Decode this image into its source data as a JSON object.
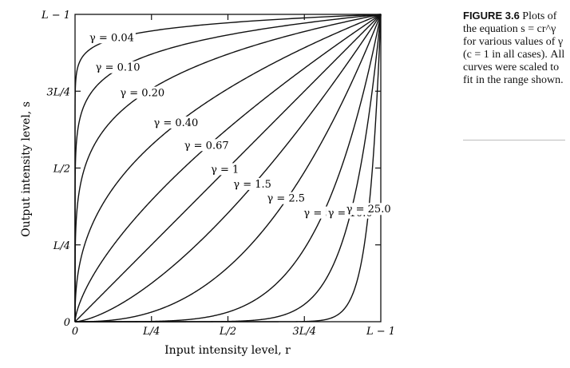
{
  "chart_data": {
    "type": "line",
    "title": "",
    "xlabel": "Input intensity level, r",
    "ylabel": "Output intensity level, s",
    "xlim": [
      0,
      1
    ],
    "ylim": [
      0,
      1
    ],
    "x_ticks": [
      {
        "value": 0,
        "label": "0"
      },
      {
        "value": 0.25,
        "label": "L/4"
      },
      {
        "value": 0.5,
        "label": "L/2"
      },
      {
        "value": 0.75,
        "label": "3L/4"
      },
      {
        "value": 1,
        "label": "L − 1"
      }
    ],
    "y_ticks": [
      {
        "value": 0,
        "label": "0"
      },
      {
        "value": 0.25,
        "label": "L/4"
      },
      {
        "value": 0.5,
        "label": "L/2"
      },
      {
        "value": 0.75,
        "label": "3L/4"
      },
      {
        "value": 1,
        "label": "L − 1"
      }
    ],
    "series": [
      {
        "gamma": 0.04,
        "name": "γ = 0.04"
      },
      {
        "gamma": 0.1,
        "name": "γ = 0.10"
      },
      {
        "gamma": 0.2,
        "name": "γ = 0.20"
      },
      {
        "gamma": 0.4,
        "name": "γ = 0.40"
      },
      {
        "gamma": 0.67,
        "name": "γ = 0.67"
      },
      {
        "gamma": 1,
        "name": "γ = 1"
      },
      {
        "gamma": 1.5,
        "name": "γ = 1.5"
      },
      {
        "gamma": 2.5,
        "name": "γ = 2.5"
      },
      {
        "gamma": 5.0,
        "name": "γ = 5.0"
      },
      {
        "gamma": 10.0,
        "name": "γ = 10.0"
      },
      {
        "gamma": 25.0,
        "name": "γ = 25.0"
      }
    ],
    "grid": false
  },
  "caption": {
    "figure_label": "FIGURE 3.6",
    "text": "Plots of the equation s = cr^γ for various values of γ (c = 1 in all cases). All curves were scaled to fit in the range shown."
  }
}
